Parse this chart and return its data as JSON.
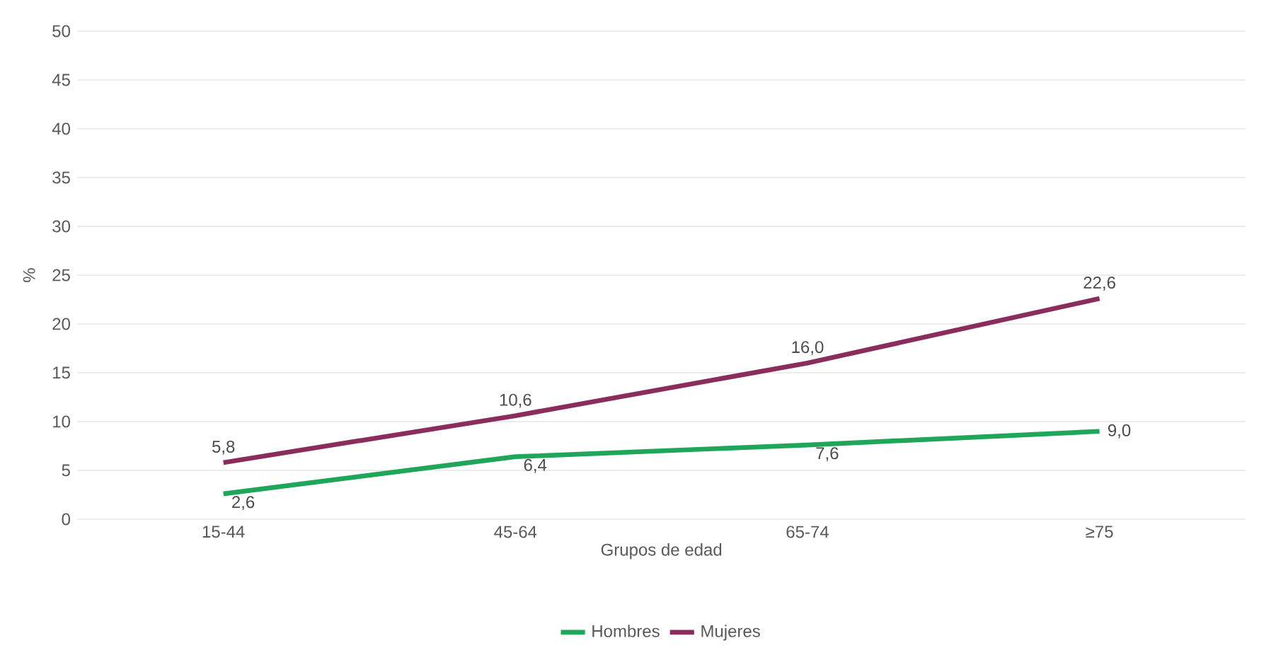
{
  "chart_data": {
    "type": "line",
    "xlabel": "Grupos de edad",
    "ylabel": "%",
    "categories": [
      "15-44",
      "45-64",
      "65-74",
      "≥75"
    ],
    "series": [
      {
        "name": "Hombres",
        "color": "#1fa65a",
        "values": [
          2.6,
          6.4,
          7.6,
          9.0
        ],
        "value_labels": [
          "2,6",
          "6,4",
          "7,6",
          "9,0"
        ]
      },
      {
        "name": "Mujeres",
        "color": "#8a2c5c",
        "values": [
          5.8,
          10.6,
          16.0,
          22.6
        ],
        "value_labels": [
          "5,8",
          "10,6",
          "16,0",
          "22,6"
        ]
      }
    ],
    "ylim": [
      0,
      50
    ],
    "yticks": [
      0,
      5,
      10,
      15,
      20,
      25,
      30,
      35,
      40,
      45,
      50
    ],
    "grid": "y",
    "legend": "bottom",
    "marker": "none",
    "line_style": "solid"
  }
}
